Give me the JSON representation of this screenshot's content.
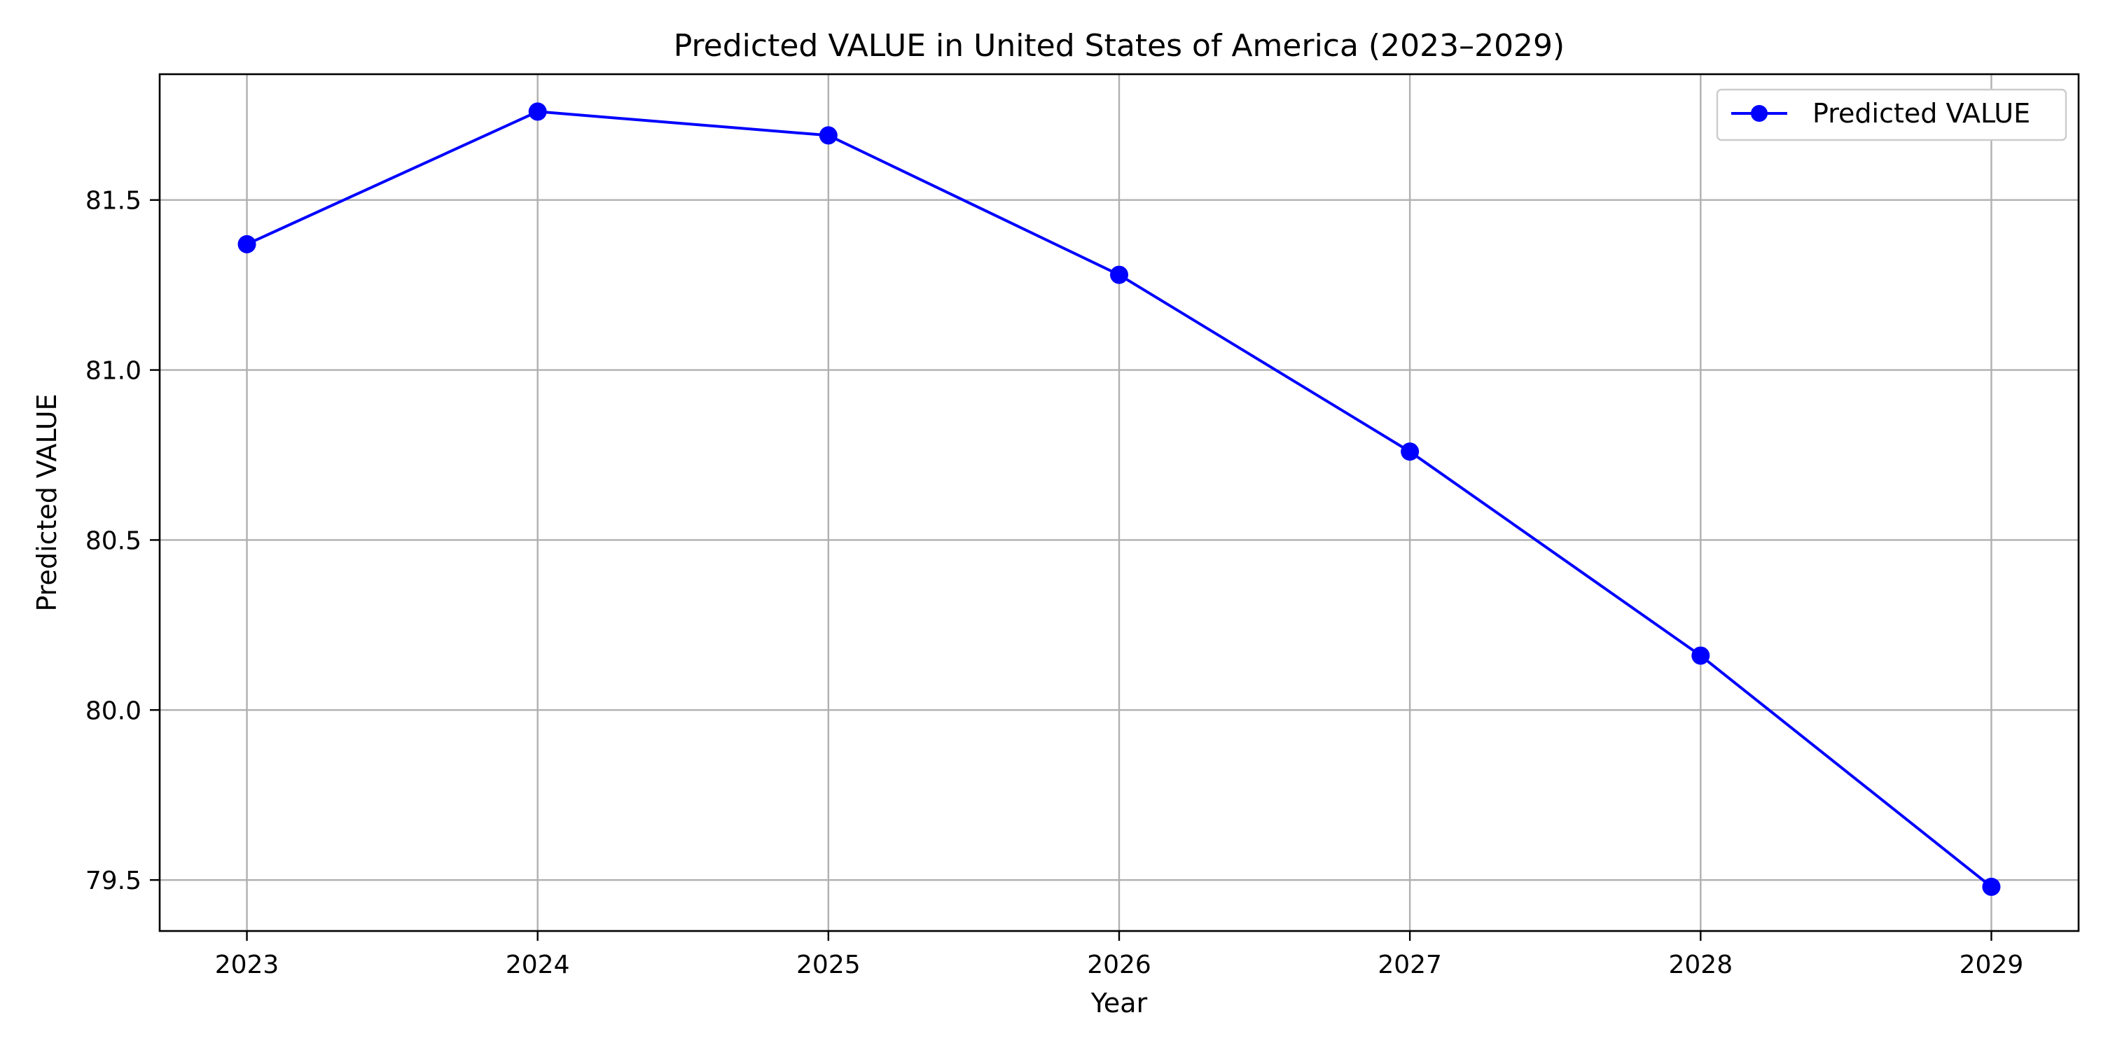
{
  "chart_data": {
    "type": "line",
    "title": "Predicted VALUE in United States of America (2023–2029)",
    "xlabel": "Year",
    "ylabel": "Predicted VALUE",
    "x": [
      2023,
      2024,
      2025,
      2026,
      2027,
      2028,
      2029
    ],
    "x_ticks": [
      "2023",
      "2024",
      "2025",
      "2026",
      "2027",
      "2028",
      "2029"
    ],
    "y_ticks": [
      "79.5",
      "80.0",
      "80.5",
      "81.0",
      "81.5"
    ],
    "y_tick_values": [
      79.5,
      80.0,
      80.5,
      81.0,
      81.5
    ],
    "xlim": [
      2022.7,
      2029.3
    ],
    "ylim": [
      79.35,
      81.87
    ],
    "grid": true,
    "legend_position": "top-right",
    "series": [
      {
        "name": "Predicted VALUE",
        "color": "#0000ff",
        "marker": "circle",
        "values": [
          81.37,
          81.76,
          81.69,
          81.28,
          80.76,
          80.16,
          79.48
        ]
      }
    ]
  }
}
